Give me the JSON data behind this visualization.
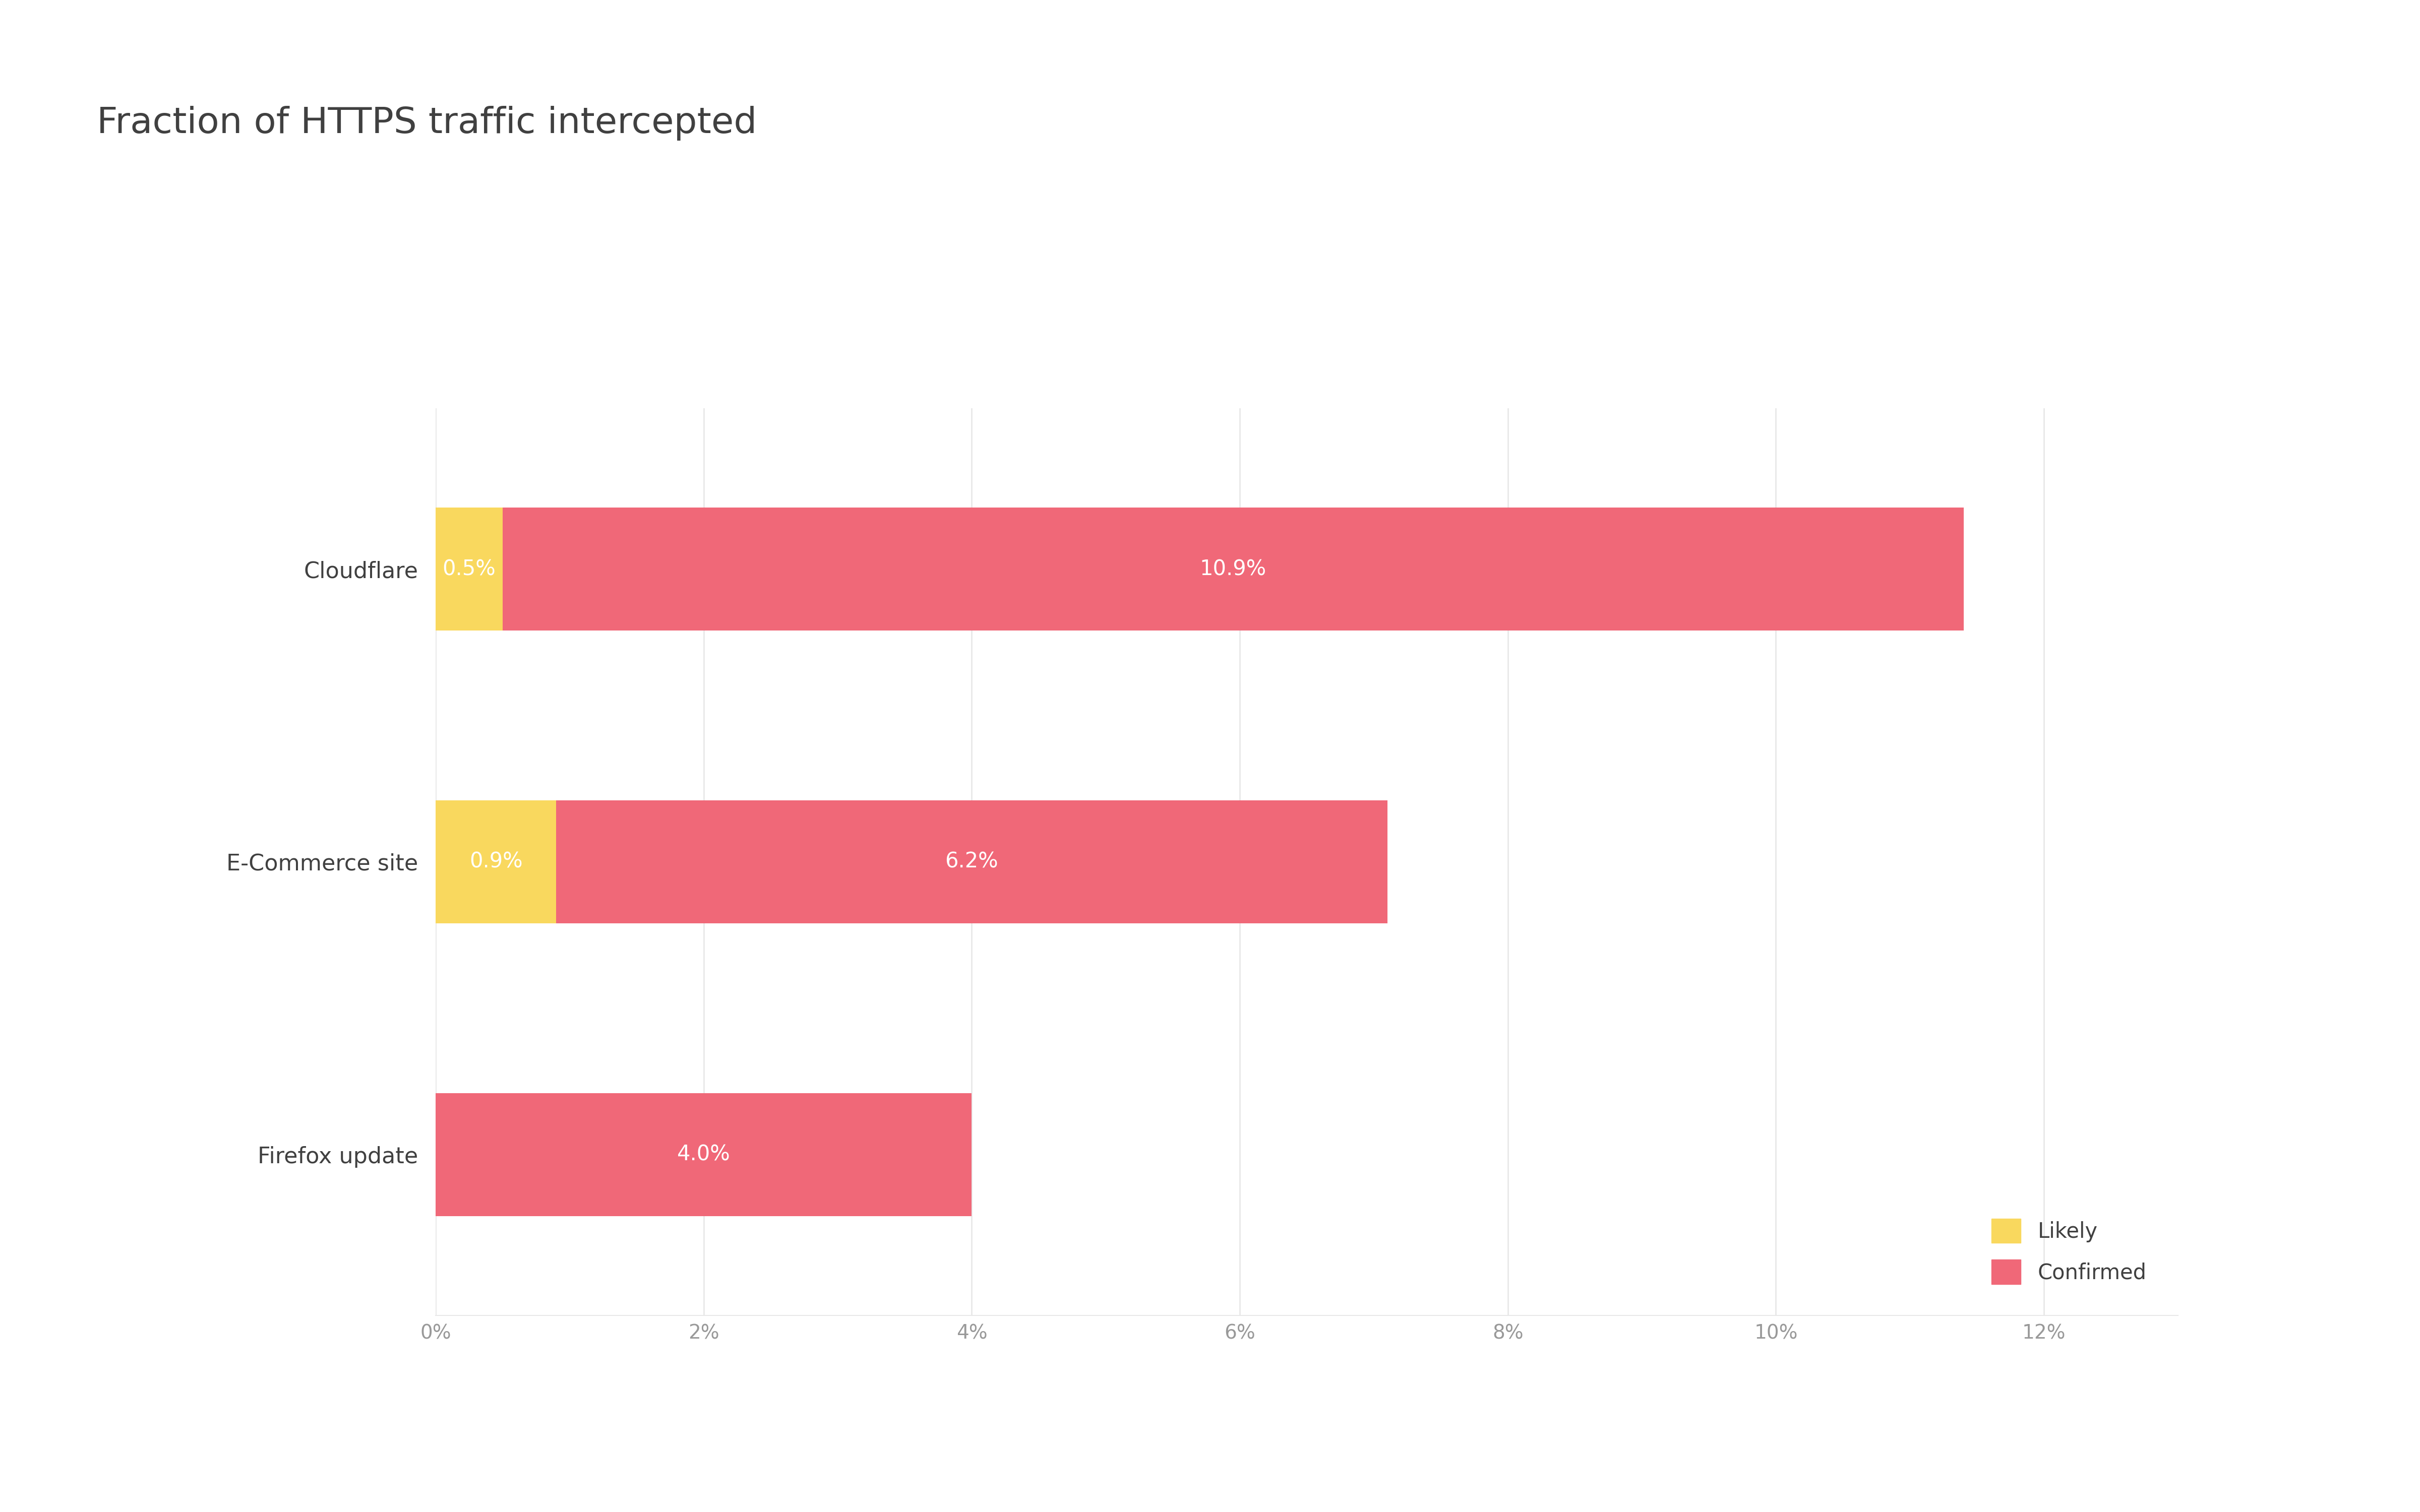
{
  "title": "Fraction of HTTPS traffic intercepted",
  "categories": [
    "Firefox update",
    "E-Commerce site",
    "Cloudflare"
  ],
  "likely_values": [
    0.0,
    0.9,
    0.5
  ],
  "confirmed_values": [
    4.0,
    6.2,
    10.9
  ],
  "likely_labels": [
    "",
    "0.9%",
    "0.5%"
  ],
  "confirmed_labels": [
    "4.0%",
    "6.2%",
    "10.9%"
  ],
  "color_likely": "#F9D85E",
  "color_confirmed": "#F06878",
  "color_background": "#FFFFFF",
  "color_title": "#404040",
  "color_axis_text": "#999999",
  "color_grid": "#E8E8E8",
  "xlim_max": 13,
  "xtick_values": [
    0,
    2,
    4,
    6,
    8,
    10,
    12
  ],
  "xtick_labels": [
    "0%",
    "2%",
    "4%",
    "6%",
    "8%",
    "10%",
    "12%"
  ],
  "bar_height": 0.42,
  "title_fontsize": 52,
  "ylabel_fontsize": 32,
  "tick_fontsize": 28,
  "legend_fontsize": 30,
  "legend_labels": [
    "Likely",
    "Confirmed"
  ],
  "bar_label_color": "#FFFFFF",
  "bar_label_fontsize": 30
}
